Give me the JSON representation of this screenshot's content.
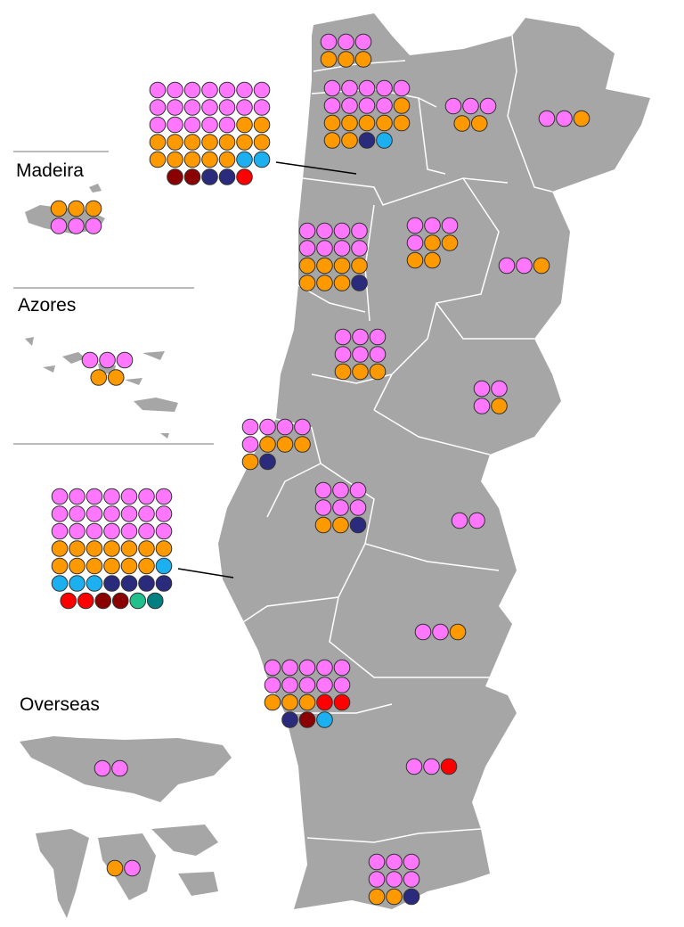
{
  "labels": {
    "madeira": "Madeira",
    "azores": "Azores",
    "overseas": "Overseas"
  },
  "palette": {
    "P": "#ff77ff",
    "O": "#ff9900",
    "N": "#2b2b7d",
    "L": "#1cb0f0",
    "D": "#8b0000",
    "R": "#ff0000",
    "G": "#22c08c",
    "T": "#008080"
  },
  "districts": [
    {
      "rows": [
        "PPP",
        "OOO"
      ]
    },
    {
      "rows": [
        "PPPPP",
        "PPPPO",
        "OOOOO",
        "OONL"
      ]
    },
    {
      "rows": [
        "PPPPPPP",
        "PPPPPPP",
        "PPPPPOO",
        "OOOOOOO",
        "OOOOOLL",
        "DDNNR"
      ]
    },
    {
      "rows": [
        "PPP",
        "OO"
      ]
    },
    {
      "rows": [
        "PPO"
      ]
    },
    {
      "rows": [
        "PPPP",
        "PPPP",
        "OOOO",
        "OOON"
      ]
    },
    {
      "rows": [
        "PPP",
        "POO",
        "OO"
      ]
    },
    {
      "rows": [
        "PPO"
      ]
    },
    {
      "rows": [
        "PPP",
        "PPP",
        "OOO"
      ]
    },
    {
      "rows": [
        "PP",
        "PO"
      ]
    },
    {
      "rows": [
        "PPPP",
        "POOO",
        "ON"
      ]
    },
    {
      "rows": [
        "PPP",
        "PPP",
        "OON"
      ]
    },
    {
      "rows": [
        "PP"
      ]
    },
    {
      "rows": [
        "PPPPPPP",
        "PPPPPPP",
        "PPPPPPP",
        "OOOOOOO",
        "OOOOOOL",
        "LLLNNNN",
        "RRDDGT"
      ]
    },
    {
      "rows": [
        "PPO"
      ]
    },
    {
      "rows": [
        "PPPPP",
        "PPPPP",
        "OOORR",
        "NDL"
      ]
    },
    {
      "rows": [
        "PPR"
      ]
    },
    {
      "rows": [
        "PPP",
        "PPP",
        "OON"
      ]
    },
    {
      "rows": [
        "OOO",
        "PPP"
      ]
    },
    {
      "rows": [
        "PPP",
        "OO"
      ]
    },
    {
      "rows": [
        "PP"
      ]
    },
    {
      "rows": [
        "OP"
      ]
    }
  ]
}
